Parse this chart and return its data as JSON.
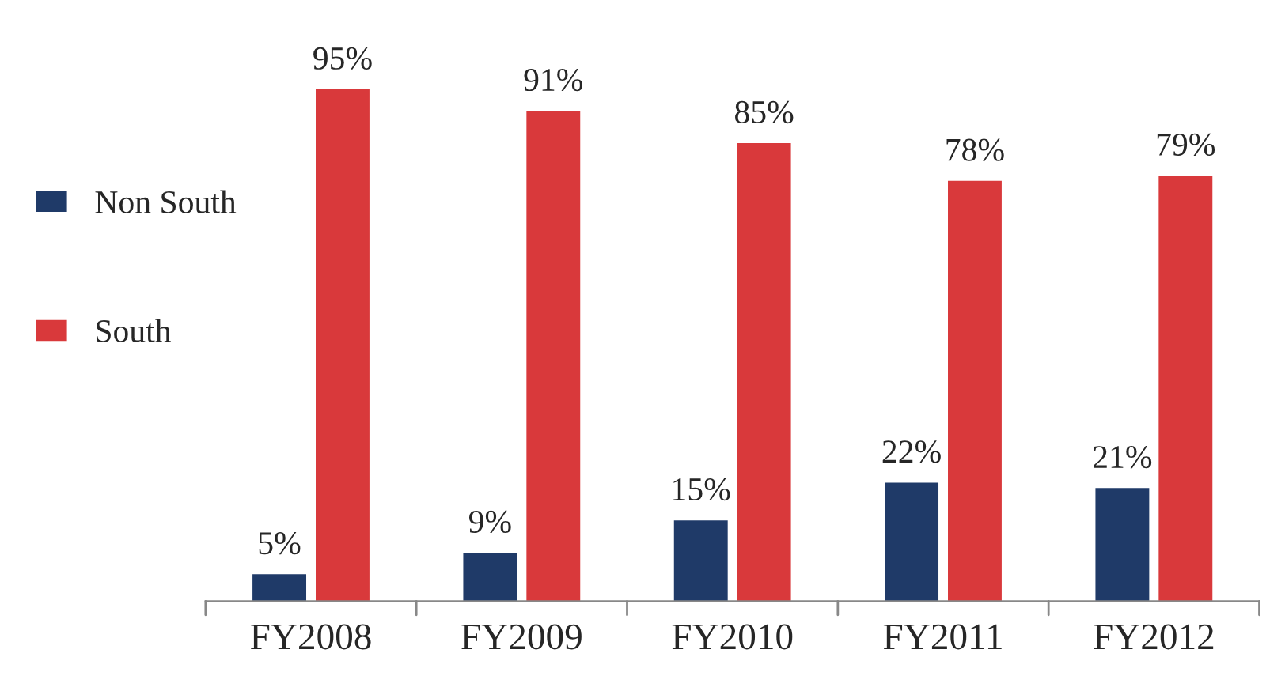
{
  "chart_data": {
    "type": "bar",
    "categories": [
      "FY2008",
      "FY2009",
      "FY2010",
      "FY2011",
      "FY2012"
    ],
    "series": [
      {
        "name": "Non South",
        "color": "#1f3a68",
        "values": [
          5,
          9,
          15,
          22,
          21
        ],
        "value_labels": [
          "5%",
          "9%",
          "15%",
          "22%",
          "21%"
        ]
      },
      {
        "name": "South",
        "color": "#d9393b",
        "values": [
          95,
          91,
          85,
          78,
          79
        ],
        "value_labels": [
          "95%",
          "91%",
          "85%",
          "78%",
          "79%"
        ]
      }
    ],
    "legend": "left",
    "grid": false
  }
}
